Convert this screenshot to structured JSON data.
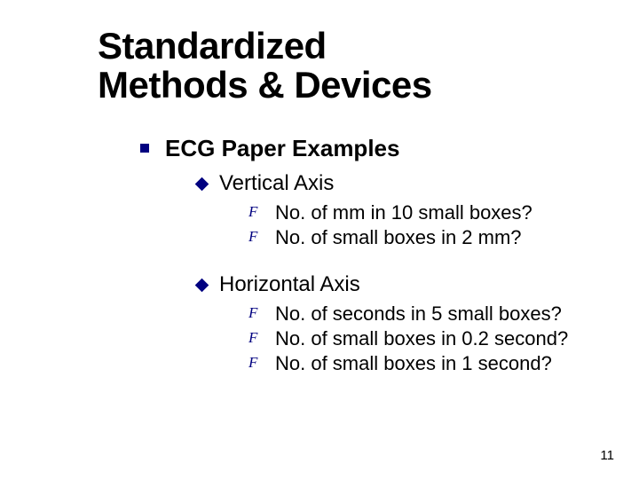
{
  "title_line1": "Standardized",
  "title_line2": "Methods & Devices",
  "heading": "ECG Paper Examples",
  "sections": [
    {
      "label": "Vertical Axis",
      "items": [
        "No. of mm in 10 small boxes?",
        "No. of small boxes in 2 mm?"
      ]
    },
    {
      "label": "Horizontal Axis",
      "items": [
        "No. of seconds in 5 small boxes?",
        "No. of small boxes in 0.2 second?",
        "No. of small boxes in 1 second?"
      ]
    }
  ],
  "page_number": "11",
  "colors": {
    "bullet": "#000080",
    "text": "#000000",
    "background": "#ffffff"
  },
  "fonts": {
    "title_size": 42,
    "level1_size": 26,
    "level2_size": 24,
    "level3_size": 22,
    "pagenum_size": 15
  }
}
